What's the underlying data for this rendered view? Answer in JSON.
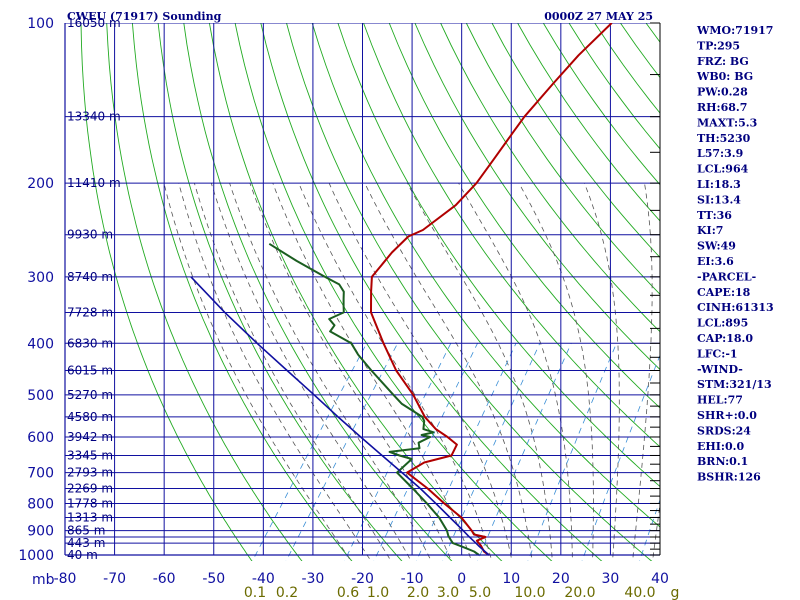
{
  "header": {
    "title": "CWEU (71917) Sounding",
    "time": "0000Z 27 MAY 25"
  },
  "chart_data": {
    "type": "skew-t",
    "pressure_levels": [
      100,
      200,
      300,
      400,
      500,
      600,
      700,
      800,
      900,
      1000
    ],
    "pressure_grid": [
      100,
      150,
      200,
      250,
      300,
      350,
      400,
      450,
      500,
      550,
      600,
      650,
      700,
      750,
      800,
      850,
      900,
      925,
      950,
      1000
    ],
    "ylim": [
      1000,
      100
    ],
    "xlim": [
      -80,
      40
    ],
    "temperature_ticks": [
      -80,
      -70,
      -60,
      -50,
      -40,
      -30,
      -20,
      -10,
      0,
      10,
      20,
      30,
      40
    ],
    "mixing_ratio_ticks": [
      "0.1",
      "0.2",
      "0.6",
      "1.0",
      "2.0",
      "3.0",
      "5.0",
      "10.0",
      "20.0",
      "40.0"
    ],
    "mixing_ratio_unit": "g",
    "height_labels": [
      {
        "p": 100,
        "label": "16050 m"
      },
      {
        "p": 150,
        "label": "13340 m"
      },
      {
        "p": 200,
        "label": "11410 m"
      },
      {
        "p": 250,
        "label": "9930 m"
      },
      {
        "p": 300,
        "label": "8740 m"
      },
      {
        "p": 350,
        "label": "7728 m"
      },
      {
        "p": 400,
        "label": "6830 m"
      },
      {
        "p": 450,
        "label": "6015 m"
      },
      {
        "p": 500,
        "label": "5270 m"
      },
      {
        "p": 550,
        "label": "4580 m"
      },
      {
        "p": 600,
        "label": "3942 m"
      },
      {
        "p": 650,
        "label": "3345 m"
      },
      {
        "p": 700,
        "label": "2793 m"
      },
      {
        "p": 750,
        "label": "2269 m"
      },
      {
        "p": 800,
        "label": "1778 m"
      },
      {
        "p": 850,
        "label": "1313 m"
      },
      {
        "p": 900,
        "label": "865 m"
      },
      {
        "p": 950,
        "label": "443 m"
      },
      {
        "p": 1000,
        "label": "40 m"
      }
    ],
    "series": [
      {
        "key": "temperature",
        "color": "#b00000",
        "points": [
          [
            1000,
            5.5
          ],
          [
            985,
            4
          ],
          [
            960,
            2.5
          ],
          [
            940,
            1
          ],
          [
            925,
            2.2
          ],
          [
            915,
            -0.5
          ],
          [
            900,
            -1.5
          ],
          [
            850,
            -5.5
          ],
          [
            800,
            -11
          ],
          [
            750,
            -16.5
          ],
          [
            700,
            -23
          ],
          [
            670,
            -21
          ],
          [
            650,
            -16.5
          ],
          [
            620,
            -17
          ],
          [
            600,
            -20
          ],
          [
            580,
            -23.5
          ],
          [
            550,
            -27.5
          ],
          [
            500,
            -33
          ],
          [
            450,
            -40
          ],
          [
            400,
            -46.5
          ],
          [
            350,
            -53.5
          ],
          [
            320,
            -56.5
          ],
          [
            300,
            -58.5
          ],
          [
            270,
            -58
          ],
          [
            252,
            -57
          ],
          [
            245,
            -55
          ],
          [
            220,
            -52
          ],
          [
            200,
            -51
          ],
          [
            180,
            -51
          ],
          [
            160,
            -51
          ],
          [
            150,
            -51
          ],
          [
            130,
            -50
          ],
          [
            115,
            -49
          ],
          [
            100,
            -47
          ]
        ]
      },
      {
        "key": "dewpoint",
        "color": "#1b5e20",
        "points": [
          [
            1000,
            3.5
          ],
          [
            985,
            2
          ],
          [
            965,
            -1
          ],
          [
            950,
            -3.5
          ],
          [
            935,
            -4.5
          ],
          [
            920,
            -5.5
          ],
          [
            900,
            -6.5
          ],
          [
            850,
            -10
          ],
          [
            800,
            -14.5
          ],
          [
            750,
            -19.5
          ],
          [
            700,
            -25
          ],
          [
            660,
            -24
          ],
          [
            650,
            -27
          ],
          [
            640,
            -29.5
          ],
          [
            630,
            -24
          ],
          [
            615,
            -25
          ],
          [
            600,
            -23.5
          ],
          [
            595,
            -25.5
          ],
          [
            588,
            -23.5
          ],
          [
            580,
            -26
          ],
          [
            560,
            -27
          ],
          [
            550,
            -28
          ],
          [
            520,
            -34
          ],
          [
            500,
            -37
          ],
          [
            450,
            -45
          ],
          [
            420,
            -50
          ],
          [
            400,
            -53
          ],
          [
            380,
            -59
          ],
          [
            370,
            -59
          ],
          [
            360,
            -61
          ],
          [
            350,
            -59
          ],
          [
            340,
            -60
          ],
          [
            330,
            -61
          ],
          [
            320,
            -62
          ],
          [
            310,
            -64
          ],
          [
            300,
            -68
          ],
          [
            280,
            -76
          ],
          [
            260,
            -84
          ]
        ]
      },
      {
        "key": "parcel",
        "color": "#1010a0",
        "points": [
          [
            1000,
            5.5
          ],
          [
            960,
            2
          ],
          [
            920,
            -1.5
          ],
          [
            900,
            -3.2
          ],
          [
            850,
            -7.8
          ],
          [
            800,
            -12.7
          ],
          [
            750,
            -18
          ],
          [
            700,
            -24
          ],
          [
            650,
            -30.5
          ],
          [
            600,
            -37.5
          ],
          [
            550,
            -45
          ],
          [
            500,
            -53
          ],
          [
            450,
            -62
          ],
          [
            400,
            -72
          ],
          [
            350,
            -83
          ],
          [
            300,
            -95
          ]
        ]
      }
    ],
    "indices": [
      "WMO:71917",
      "TP:295",
      "FRZ: BG",
      "WB0: BG",
      "PW:0.28",
      "RH:68.7",
      "MAXT:5.3",
      "TH:5230",
      "L57:3.9",
      "LCL:964",
      "LI:18.3",
      "SI:13.4",
      "TT:36",
      "KI:7",
      "SW:49",
      "EI:3.6",
      "-PARCEL-",
      "CAPE:18",
      "CINH:61313",
      "LCL:895",
      "CAP:18.0",
      "LFC:-1",
      "-WIND-",
      "STM:321/13",
      "HEL:77",
      "SHR+:0.0",
      "SRDS:24",
      "EHI:0.0",
      "BRN:0.1",
      "BSHR:126"
    ]
  }
}
